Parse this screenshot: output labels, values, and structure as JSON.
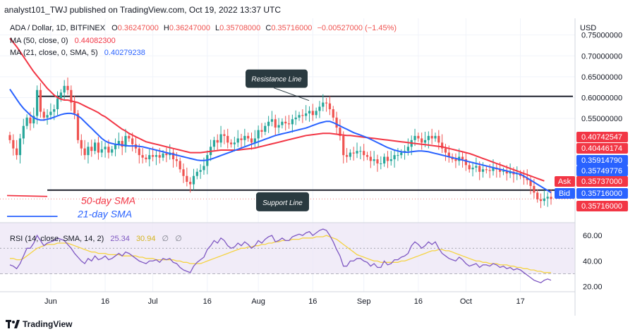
{
  "header": {
    "publisher": "analyst101_TWJ published on TradingView.com, Oct 19, 2022 13:37 UTC"
  },
  "footer": {
    "brand": "TradingView",
    "logo_icon": "tradingview-logo-icon"
  },
  "colors": {
    "up": "#26a69a",
    "down": "#ef5350",
    "ma50": "#f23645",
    "ma21": "#2962ff",
    "rsi": "#7e57c2",
    "rsi_ma": "#f5d342",
    "level": "#131722",
    "label_bg": "#2a3a40"
  },
  "chart_data": [
    {
      "type": "candlestick",
      "legend": {
        "symbol": "ADA / Dollar, 1D, BITFINEX",
        "open_label": "O",
        "open": "0.36247000",
        "high_label": "H",
        "high": "0.36247000",
        "low_label": "L",
        "low": "0.35708000",
        "close_label": "C",
        "close": "0.35716000",
        "change": "−0.00527000 (−1.45%)",
        "ma50_label": "MA (50, close, 0)",
        "ma50_value": "0.44082300",
        "ma21_label": "MA (21, close, 0, SMA, 5)",
        "ma21_value": "0.40279238"
      },
      "currency": "USD",
      "ylim": [
        0.3,
        0.79
      ],
      "y_ticks": [
        "0.75000000",
        "0.70000000",
        "0.65000000",
        "0.60000000",
        "0.55000000"
      ],
      "x_ticks": [
        "Jun",
        "16",
        "Jul",
        "16",
        "Aug",
        "16",
        "Sep",
        "16",
        "Oct",
        "17"
      ],
      "price_labels": [
        "0.40742547",
        "0.40446174",
        "0.35914790",
        "0.35749776",
        "0.35737000",
        "0.35716000",
        "0.35716000"
      ],
      "ask_label": "Ask",
      "bid_label": "Bid",
      "annotations": {
        "resistance": "Resistance Line",
        "resistance_value": 0.603,
        "support": "Support Line",
        "support_value": 0.378,
        "sma50_text": "50-day SMA",
        "sma21_text": "21-day SMA"
      },
      "closes": [
        0.498,
        0.478,
        0.462,
        0.502,
        0.532,
        0.552,
        0.538,
        0.556,
        0.618,
        0.566,
        0.552,
        0.558,
        0.566,
        0.572,
        0.598,
        0.612,
        0.628,
        0.618,
        0.588,
        0.562,
        0.498,
        0.478,
        0.462,
        0.482,
        0.472,
        0.492,
        0.468,
        0.476,
        0.482,
        0.468,
        0.476,
        0.488,
        0.496,
        0.482,
        0.508,
        0.502,
        0.488,
        0.478,
        0.462,
        0.456,
        0.452,
        0.462,
        0.458,
        0.462,
        0.456,
        0.466,
        0.462,
        0.468,
        0.452,
        0.448,
        0.428,
        0.412,
        0.398,
        0.392,
        0.412,
        0.422,
        0.426,
        0.436,
        0.462,
        0.482,
        0.498,
        0.492,
        0.512,
        0.508,
        0.492,
        0.488,
        0.492,
        0.502,
        0.498,
        0.508,
        0.502,
        0.492,
        0.502,
        0.522,
        0.518,
        0.532,
        0.542,
        0.548,
        0.528,
        0.534,
        0.542,
        0.538,
        0.536,
        0.548,
        0.552,
        0.558,
        0.556,
        0.562,
        0.568,
        0.558,
        0.568,
        0.578,
        0.588,
        0.586,
        0.572,
        0.552,
        0.528,
        0.508,
        0.462,
        0.458,
        0.468,
        0.466,
        0.472,
        0.472,
        0.462,
        0.458,
        0.448,
        0.452,
        0.442,
        0.442,
        0.458,
        0.448,
        0.452,
        0.462,
        0.462,
        0.468,
        0.472,
        0.482,
        0.498,
        0.508,
        0.502,
        0.492,
        0.498,
        0.508,
        0.502,
        0.508,
        0.492,
        0.478,
        0.468,
        0.458,
        0.452,
        0.448,
        0.458,
        0.452,
        0.438,
        0.428,
        0.432,
        0.436,
        0.422,
        0.428,
        0.426,
        0.424,
        0.432,
        0.428,
        0.422,
        0.424,
        0.418,
        0.422,
        0.416,
        0.418,
        0.412,
        0.408,
        0.402,
        0.388,
        0.372,
        0.356,
        0.352,
        0.358,
        0.362,
        0.357
      ],
      "ma50": [
        0.742,
        0.732,
        0.722,
        0.71,
        0.698,
        0.686,
        0.674,
        0.662,
        0.652,
        0.642,
        0.632,
        0.622,
        0.614,
        0.606,
        0.6,
        0.596,
        0.594,
        0.594,
        0.592,
        0.59,
        0.588,
        0.584,
        0.58,
        0.576,
        0.572,
        0.568,
        0.564,
        0.558,
        0.554,
        0.548,
        0.542,
        0.536,
        0.53,
        0.524,
        0.52,
        0.514,
        0.51,
        0.506,
        0.502,
        0.498,
        0.494,
        0.492,
        0.49,
        0.488,
        0.486,
        0.484,
        0.482,
        0.48,
        0.478,
        0.476,
        0.474,
        0.472,
        0.47,
        0.468,
        0.468,
        0.468,
        0.468,
        0.469,
        0.47,
        0.471,
        0.472,
        0.473,
        0.474,
        0.474,
        0.474,
        0.474,
        0.474,
        0.474,
        0.475,
        0.476,
        0.477,
        0.478,
        0.479,
        0.481,
        0.483,
        0.485,
        0.487,
        0.489,
        0.491,
        0.493,
        0.495,
        0.497,
        0.499,
        0.501,
        0.503,
        0.505,
        0.507,
        0.509,
        0.51,
        0.511,
        0.512,
        0.513,
        0.514,
        0.514,
        0.514,
        0.513,
        0.512,
        0.511,
        0.51,
        0.509,
        0.509,
        0.508,
        0.507,
        0.506,
        0.505,
        0.504,
        0.503,
        0.502,
        0.501,
        0.5,
        0.499,
        0.498,
        0.497,
        0.496,
        0.495,
        0.494,
        0.493,
        0.492,
        0.491,
        0.49,
        0.489,
        0.488,
        0.487,
        0.486,
        0.485,
        0.484,
        0.483,
        0.482,
        0.48,
        0.478,
        0.476,
        0.474,
        0.472,
        0.47,
        0.468,
        0.466,
        0.463,
        0.46,
        0.457,
        0.454,
        0.451,
        0.448,
        0.445,
        0.442,
        0.439,
        0.436,
        0.433,
        0.43,
        0.427,
        0.424,
        0.421,
        0.418,
        0.415,
        0.412,
        0.409,
        0.406,
        0.403,
        0.4
      ],
      "ma21": [
        0.62,
        0.608,
        0.596,
        0.584,
        0.574,
        0.566,
        0.558,
        0.552,
        0.548,
        0.546,
        0.546,
        0.548,
        0.55,
        0.553,
        0.556,
        0.559,
        0.561,
        0.562,
        0.562,
        0.56,
        0.556,
        0.55,
        0.542,
        0.534,
        0.526,
        0.518,
        0.51,
        0.502,
        0.496,
        0.492,
        0.49,
        0.488,
        0.487,
        0.486,
        0.485,
        0.484,
        0.484,
        0.484,
        0.483,
        0.482,
        0.48,
        0.478,
        0.476,
        0.474,
        0.472,
        0.47,
        0.468,
        0.466,
        0.464,
        0.462,
        0.46,
        0.458,
        0.456,
        0.454,
        0.452,
        0.45,
        0.449,
        0.449,
        0.45,
        0.452,
        0.455,
        0.458,
        0.461,
        0.464,
        0.467,
        0.47,
        0.473,
        0.476,
        0.479,
        0.482,
        0.485,
        0.488,
        0.491,
        0.494,
        0.497,
        0.5,
        0.503,
        0.506,
        0.509,
        0.511,
        0.513,
        0.515,
        0.517,
        0.519,
        0.521,
        0.523,
        0.525,
        0.527,
        0.53,
        0.533,
        0.536,
        0.539,
        0.541,
        0.543,
        0.543,
        0.54,
        0.536,
        0.532,
        0.528,
        0.524,
        0.52,
        0.516,
        0.513,
        0.51,
        0.507,
        0.504,
        0.5,
        0.496,
        0.492,
        0.488,
        0.484,
        0.48,
        0.477,
        0.474,
        0.472,
        0.47,
        0.469,
        0.469,
        0.47,
        0.471,
        0.472,
        0.472,
        0.471,
        0.47,
        0.468,
        0.466,
        0.464,
        0.462,
        0.46,
        0.458,
        0.456,
        0.454,
        0.452,
        0.45,
        0.448,
        0.446,
        0.444,
        0.442,
        0.44,
        0.438,
        0.436,
        0.434,
        0.432,
        0.43,
        0.428,
        0.426,
        0.424,
        0.422,
        0.42,
        0.418,
        0.416,
        0.412,
        0.407,
        0.402,
        0.397,
        0.392,
        0.387,
        0.382,
        0.377,
        0.372
      ]
    },
    {
      "type": "line",
      "legend": {
        "label": "RSI (14, close, SMA, 14, 2)",
        "value": "25.34",
        "ma_value": "30.94"
      },
      "ylim": [
        16,
        70
      ],
      "y_ticks": [
        "60.00",
        "40.00",
        "20.00"
      ],
      "band": [
        30,
        70
      ],
      "rsi": [
        37,
        36,
        34,
        38,
        44,
        50,
        50,
        54,
        60,
        56,
        52,
        54,
        55,
        56,
        58,
        57,
        56,
        53,
        50,
        46,
        43,
        40,
        38,
        42,
        40,
        44,
        41,
        42,
        44,
        41,
        42,
        44,
        46,
        44,
        47,
        46,
        44,
        42,
        40,
        39,
        38,
        40,
        40,
        41,
        39,
        42,
        41,
        42,
        39,
        38,
        35,
        33,
        32,
        31,
        36,
        39,
        41,
        43,
        49,
        52,
        56,
        54,
        58,
        56,
        52,
        50,
        51,
        54,
        52,
        55,
        53,
        50,
        52,
        56,
        54,
        57,
        59,
        60,
        55,
        56,
        58,
        56,
        56,
        59,
        60,
        61,
        60,
        62,
        63,
        60,
        62,
        64,
        65,
        64,
        60,
        55,
        49,
        44,
        36,
        36,
        40,
        40,
        42,
        42,
        40,
        39,
        36,
        38,
        35,
        35,
        40,
        37,
        38,
        41,
        41,
        43,
        44,
        46,
        52,
        55,
        53,
        50,
        52,
        55,
        53,
        55,
        50,
        46,
        44,
        42,
        41,
        40,
        43,
        41,
        38,
        36,
        37,
        38,
        35,
        37,
        37,
        36,
        38,
        37,
        35,
        36,
        34,
        35,
        33,
        34,
        33,
        31,
        29,
        27,
        25,
        24,
        23,
        25,
        26,
        25
      ],
      "rsi_ma": [
        42,
        42,
        41,
        41,
        42,
        44,
        46,
        48,
        50,
        51,
        52,
        53,
        53,
        53,
        54,
        54,
        54,
        54,
        53,
        52,
        51,
        50,
        49,
        48,
        47,
        47,
        46,
        46,
        46,
        45,
        45,
        45,
        45,
        44,
        44,
        44,
        44,
        44,
        43,
        43,
        42,
        42,
        42,
        41,
        41,
        41,
        41,
        41,
        41,
        40,
        40,
        39,
        39,
        38,
        38,
        38,
        38,
        39,
        40,
        41,
        42,
        43,
        44,
        45,
        46,
        47,
        48,
        49,
        50,
        50,
        51,
        51,
        52,
        52,
        53,
        53,
        54,
        54,
        55,
        55,
        56,
        56,
        56,
        57,
        57,
        57,
        58,
        58,
        58,
        58,
        59,
        59,
        59,
        60,
        59,
        58,
        57,
        55,
        53,
        51,
        49,
        47,
        45,
        44,
        43,
        42,
        41,
        40,
        40,
        39,
        39,
        39,
        39,
        39,
        39,
        40,
        40,
        41,
        42,
        43,
        44,
        45,
        46,
        47,
        48,
        48,
        49,
        49,
        48,
        48,
        47,
        46,
        45,
        44,
        43,
        42,
        41,
        40,
        40,
        39,
        39,
        38,
        38,
        38,
        37,
        37,
        37,
        36,
        36,
        35,
        35,
        34,
        34,
        33,
        33,
        32,
        32,
        31,
        31,
        31
      ]
    }
  ]
}
